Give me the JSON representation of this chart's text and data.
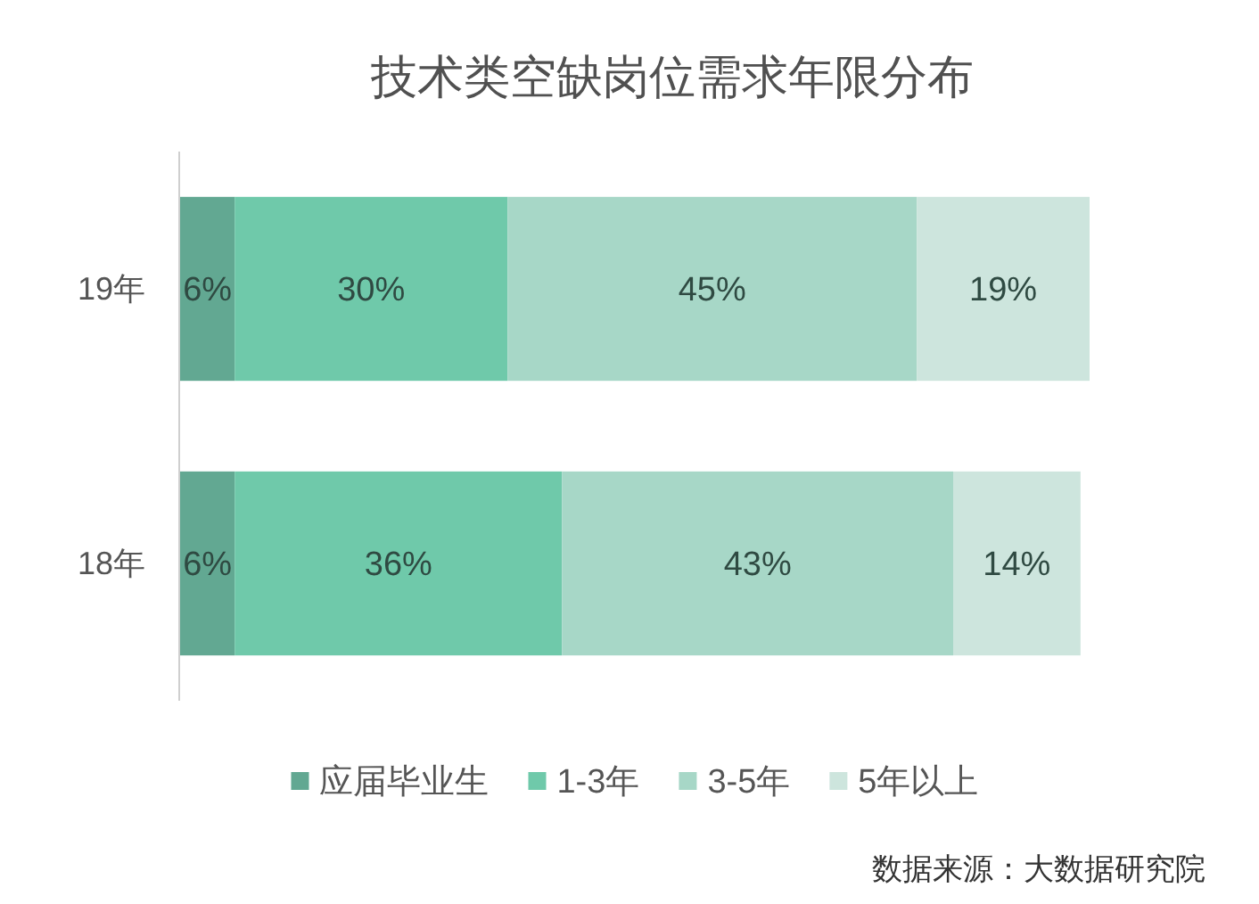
{
  "chart_data": {
    "type": "bar",
    "orientation": "horizontal",
    "stacked": true,
    "title": "技术类空缺岗位需求年限分布",
    "categories": [
      "19年",
      "18年"
    ],
    "series": [
      {
        "name": "应届毕业生",
        "color": "#62a892",
        "values": [
          6,
          6
        ],
        "value_labels": [
          "6%",
          "6%"
        ]
      },
      {
        "name": "1-3年",
        "color": "#6fc9aa",
        "values": [
          30,
          36
        ],
        "value_labels": [
          "30%",
          "36%"
        ]
      },
      {
        "name": "3-5年",
        "color": "#a7d7c7",
        "values": [
          45,
          43
        ],
        "value_labels": [
          "45%",
          "43%"
        ]
      },
      {
        "name": "5年以上",
        "color": "#cde5dd",
        "values": [
          19,
          14
        ],
        "value_labels": [
          "19%",
          "14%"
        ]
      }
    ],
    "legend": "bottom",
    "tick_labels": "y",
    "annotations": [
      "数据来源：大数据研究院"
    ]
  }
}
